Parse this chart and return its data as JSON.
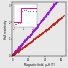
{
  "bg_color": "#e8e8e8",
  "main_xlim": [
    0,
    65
  ],
  "main_ylim": [
    0,
    3.2
  ],
  "xlabel": "Magnetic field  μ₀H (T)",
  "ylabel": "Hall resistivity",
  "purple_color": "#9400D3",
  "red_color": "#BB1100",
  "inset_bg": "#ffffff",
  "inset_pink_color": "#FF00AA",
  "inset_green_color": "#00BB00",
  "xticks": [
    0,
    20,
    40,
    60
  ],
  "yticks": [
    0,
    1,
    2,
    3
  ]
}
